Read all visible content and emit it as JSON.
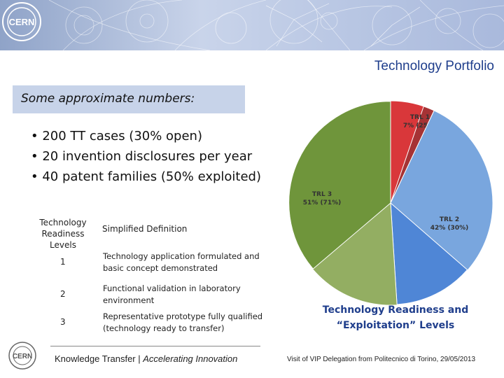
{
  "header": {
    "logo_text": "CERN",
    "title": "Technology Portfolio"
  },
  "callout": {
    "text": "Some approximate numbers:"
  },
  "bullets": [
    "200 TT cases (30% open)",
    "20 invention disclosures per year",
    "40 patent families (50% exploited)"
  ],
  "trl_table": {
    "col_level": "Technology Readiness Levels",
    "col_definition": "Simplified Definition",
    "rows": [
      {
        "level": "1",
        "definition": "Technology application formulated and basic concept demonstrated"
      },
      {
        "level": "2",
        "definition": "Functional validation in laboratory environment"
      },
      {
        "level": "3",
        "definition": "Representative prototype fully qualified (technology ready to transfer)"
      }
    ]
  },
  "chart_data": {
    "type": "pie",
    "title": "Technology Readiness and “Exploitation” Levels",
    "slices": [
      {
        "name": "TRL 1",
        "label": "TRL 1",
        "value": 7,
        "exploited_pct": 25,
        "value_label": "7% (25%)",
        "color": "#d9373a",
        "exploited_color": "#a63335"
      },
      {
        "name": "TRL 2",
        "label": "TRL 2",
        "value": 42,
        "exploited_pct": 30,
        "value_label": "42% (30%)",
        "color": "#79a6de",
        "exploited_color": "#4f86d6"
      },
      {
        "name": "TRL 3",
        "label": "TRL 3",
        "value": 51,
        "exploited_pct": 71,
        "value_label": "51% (71%)",
        "color": "#93ae62",
        "exploited_color": "#6f953b"
      }
    ]
  },
  "caption": {
    "line1": "Technology Readiness and",
    "line2": "“Exploitation” Levels"
  },
  "footer": {
    "left_main": "Knowledge Transfer | ",
    "left_italic": "Accelerating Innovation",
    "right": "Visit of VIP Delegation from Politecnico di Torino, 29/05/2013"
  }
}
